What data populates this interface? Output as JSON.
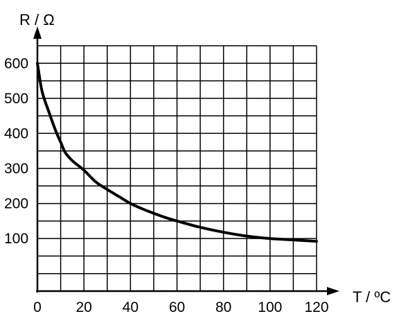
{
  "chart_data": {
    "type": "line",
    "title": "",
    "xlabel": "T / ºC",
    "ylabel": "R / Ω",
    "xlim": [
      0,
      120
    ],
    "ylim": [
      -50,
      650
    ],
    "x_ticks": [
      0,
      20,
      40,
      60,
      80,
      100,
      120
    ],
    "y_ticks": [
      100,
      200,
      300,
      400,
      500,
      600
    ],
    "grid": true,
    "grid_x_step": 10,
    "grid_y_step": 50,
    "series": [
      {
        "color": "#000000",
        "x": [
          0,
          2,
          5,
          8,
          10,
          12,
          15,
          20,
          25,
          30,
          35,
          40,
          45,
          50,
          55,
          60,
          70,
          80,
          90,
          100,
          110,
          120
        ],
        "y": [
          600,
          520,
          460,
          405,
          375,
          345,
          322,
          295,
          262,
          240,
          220,
          200,
          185,
          172,
          160,
          150,
          132,
          118,
          107,
          100,
          96,
          92
        ]
      }
    ],
    "colors": {
      "axis": "#000000",
      "grid": "#000000",
      "curve": "#000000",
      "background": "#ffffff"
    }
  }
}
